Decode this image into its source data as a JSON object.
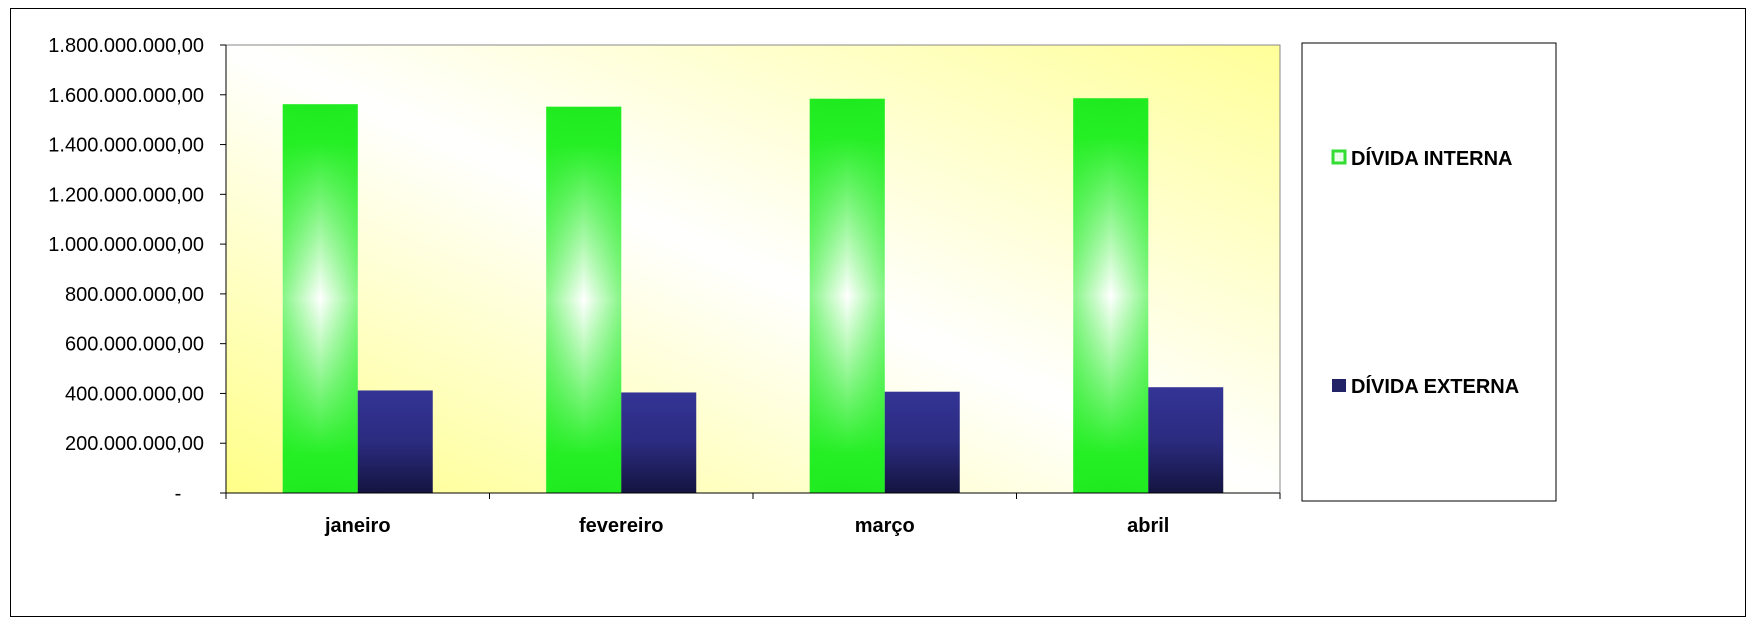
{
  "chart_data": {
    "type": "bar",
    "categories": [
      "janeiro",
      "fevereiro",
      "março",
      "abril"
    ],
    "series": [
      {
        "name": "DÍVIDA INTERNA",
        "values": [
          1562000000,
          1552000000,
          1584000000,
          1586000000
        ],
        "color": "#22ee22",
        "legend_color": "#33dd33"
      },
      {
        "name": "DÍVIDA EXTERNA",
        "values": [
          412000000,
          404000000,
          407000000,
          425000000
        ],
        "color": "#2a2a8a",
        "legend_color": "#222266"
      }
    ],
    "ylim": [
      0,
      1800000000
    ],
    "yticks": [
      0,
      200000000,
      400000000,
      600000000,
      800000000,
      1000000000,
      1200000000,
      1400000000,
      1600000000,
      1800000000
    ],
    "ytick_labels": [
      "-",
      "200.000.000,00",
      "400.000.000,00",
      "600.000.000,00",
      "800.000.000,00",
      "1.000.000.000,00",
      "1.200.000.000,00",
      "1.400.000.000,00",
      "1.600.000.000,00",
      "1.800.000.000,00"
    ],
    "title": "",
    "xlabel": "",
    "ylabel": "",
    "grid": false,
    "legend_position": "right",
    "plot_background": "gradient-yellow-white"
  }
}
